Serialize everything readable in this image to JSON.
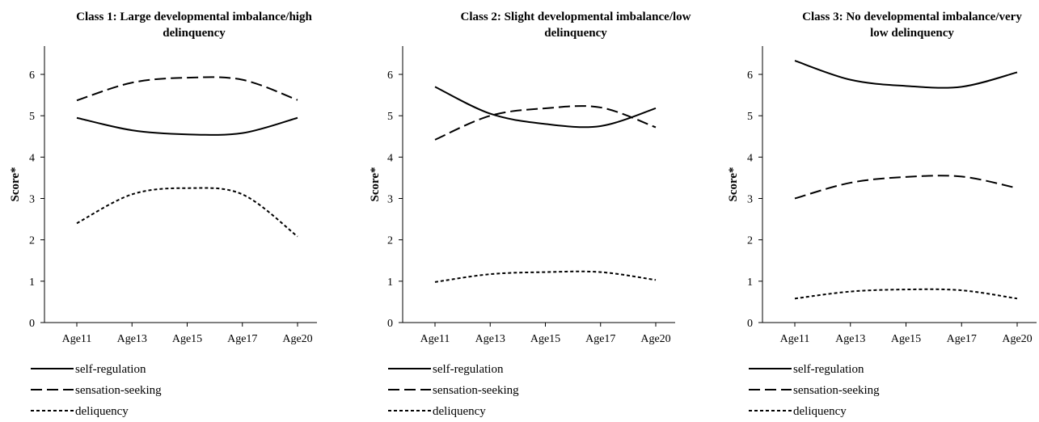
{
  "chart_data": [
    {
      "type": "line",
      "title_lines": [
        "Class 1: Large developmental imbalance/high",
        "delinquency"
      ],
      "ylabel": "Score*",
      "ylim": [
        0,
        6
      ],
      "yticks": [
        0,
        1,
        2,
        3,
        4,
        5,
        6
      ],
      "categories": [
        "Age11",
        "Age13",
        "Age15",
        "Age17",
        "Age20"
      ],
      "series": [
        {
          "name": "self-regulation",
          "style": "solid",
          "values": [
            4.95,
            4.65,
            4.55,
            4.58,
            4.95
          ]
        },
        {
          "name": "sensation-seeking",
          "style": "dashed",
          "values": [
            5.37,
            5.8,
            5.92,
            5.87,
            5.38
          ]
        },
        {
          "name": "deliquency",
          "style": "dotted",
          "values": [
            2.4,
            3.1,
            3.25,
            3.1,
            2.08
          ]
        }
      ]
    },
    {
      "type": "line",
      "title_lines": [
        "Class 2: Slight developmental imbalance/low",
        "delinquency"
      ],
      "ylabel": "Score*",
      "ylim": [
        0,
        6
      ],
      "yticks": [
        0,
        1,
        2,
        3,
        4,
        5,
        6
      ],
      "categories": [
        "Age11",
        "Age13",
        "Age15",
        "Age17",
        "Age20"
      ],
      "series": [
        {
          "name": "self-regulation",
          "style": "solid",
          "values": [
            5.7,
            5.05,
            4.8,
            4.75,
            5.18
          ]
        },
        {
          "name": "sensation-seeking",
          "style": "dashed",
          "values": [
            4.42,
            5.0,
            5.18,
            5.2,
            4.72
          ]
        },
        {
          "name": "deliquency",
          "style": "dotted",
          "values": [
            0.98,
            1.17,
            1.22,
            1.22,
            1.03
          ]
        }
      ]
    },
    {
      "type": "line",
      "title_lines": [
        "Class 3: No developmental imbalance/very",
        "low delinquency"
      ],
      "ylabel": "Score*",
      "ylim": [
        0,
        6
      ],
      "yticks": [
        0,
        1,
        2,
        3,
        4,
        5,
        6
      ],
      "categories": [
        "Age11",
        "Age13",
        "Age15",
        "Age17",
        "Age20"
      ],
      "series": [
        {
          "name": "self-regulation",
          "style": "solid",
          "values": [
            6.33,
            5.87,
            5.72,
            5.7,
            6.05
          ]
        },
        {
          "name": "sensation-seeking",
          "style": "dashed",
          "values": [
            3.0,
            3.38,
            3.52,
            3.53,
            3.25
          ]
        },
        {
          "name": "deliquency",
          "style": "dotted",
          "values": [
            0.58,
            0.75,
            0.8,
            0.78,
            0.58
          ]
        }
      ]
    }
  ]
}
